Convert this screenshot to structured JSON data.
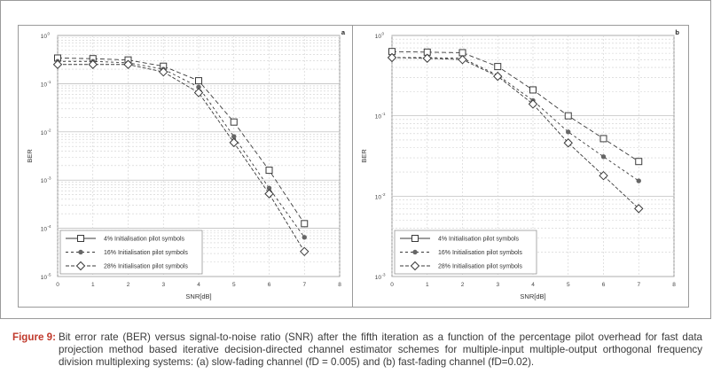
{
  "charts": [
    {
      "panel_letter": "a",
      "chart_data": {
        "type": "line",
        "log_y": true,
        "ylim_exp": [
          -5,
          0
        ],
        "xlim": [
          0,
          8
        ],
        "x_ticks": [
          "0",
          "1",
          "2",
          "3",
          "4",
          "5",
          "6",
          "7",
          "8"
        ],
        "y_ticks": [
          {
            "exp": 0,
            "label": "10",
            "sup": "0"
          },
          {
            "exp": -1,
            "label": "10",
            "sup": "-1"
          },
          {
            "exp": -2,
            "label": "10",
            "sup": "-2"
          },
          {
            "exp": -3,
            "label": "10",
            "sup": "-3"
          },
          {
            "exp": -4,
            "label": "10",
            "sup": "-4"
          },
          {
            "exp": -5,
            "label": "10",
            "sup": "-5"
          }
        ],
        "xlabel": "SNR[dB]",
        "ylabel": "BER",
        "grid": true,
        "legend_position": "bottom-left",
        "x": [
          0,
          1,
          2,
          3,
          4,
          5,
          6,
          7
        ],
        "series": [
          {
            "name": "4% Initialisation pilot symbols",
            "marker": "square",
            "values": [
              0.34,
              0.33,
              0.31,
              0.23,
              0.115,
              0.016,
              0.0016,
              0.000125
            ]
          },
          {
            "name": "16% Initialisation pilot symbols",
            "marker": "dot",
            "values": [
              0.29,
              0.29,
              0.27,
              0.2,
              0.085,
              0.008,
              0.00068,
              6.5e-05
            ]
          },
          {
            "name": "28% Initialisation pilot symbols",
            "marker": "diamond",
            "values": [
              0.25,
              0.25,
              0.25,
              0.175,
              0.065,
              0.006,
              0.00052,
              3.3e-05
            ]
          }
        ]
      }
    },
    {
      "panel_letter": "b",
      "chart_data": {
        "type": "line",
        "log_y": true,
        "ylim_exp": [
          -3,
          0
        ],
        "xlim": [
          0,
          8
        ],
        "x_ticks": [
          "0",
          "1",
          "2",
          "3",
          "4",
          "5",
          "6",
          "7",
          "8"
        ],
        "y_ticks": [
          {
            "exp": 0,
            "label": "10",
            "sup": "0"
          },
          {
            "exp": -1,
            "label": "10",
            "sup": "-1"
          },
          {
            "exp": -2,
            "label": "10",
            "sup": "-2"
          },
          {
            "exp": -3,
            "label": "10",
            "sup": "-3"
          }
        ],
        "xlabel": "SNR[dB]",
        "ylabel": "BER",
        "grid": true,
        "legend_position": "bottom-left",
        "x": [
          0,
          1,
          2,
          3,
          4,
          5,
          6,
          7
        ],
        "series": [
          {
            "name": "4% Initialisation pilot symbols",
            "marker": "square",
            "values": [
              0.63,
              0.62,
              0.61,
              0.41,
              0.21,
              0.1,
              0.052,
              0.027
            ]
          },
          {
            "name": "16% Initialisation pilot symbols",
            "marker": "dot",
            "values": [
              0.53,
              0.53,
              0.52,
              0.32,
              0.155,
              0.063,
              0.031,
              0.0155
            ]
          },
          {
            "name": "28% Initialisation pilot symbols",
            "marker": "diamond",
            "values": [
              0.53,
              0.52,
              0.5,
              0.31,
              0.14,
              0.046,
              0.018,
              0.007
            ]
          }
        ]
      }
    }
  ],
  "caption": {
    "label": "Figure 9:",
    "text": "Bit error rate (BER) versus signal-to-noise ratio (SNR) after the fifth iteration as a function of the percentage pilot overhead for fast data projection method based iterative decision-directed channel estimator schemes for multiple-input multiple-output orthogonal frequency division multiplexing systems: (a) slow-fading channel (fD = 0.005) and (b) fast-fading channel (fD=0.02)."
  },
  "colors": {
    "line": "#3a3a3a",
    "grid": "#cfcfcf",
    "caption_label": "#c0392b"
  }
}
